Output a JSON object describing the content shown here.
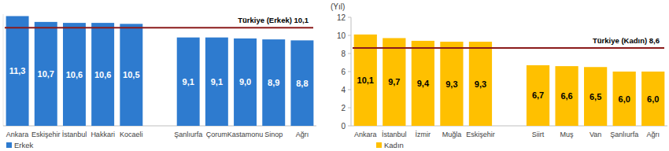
{
  "chart_data": [
    {
      "type": "bar",
      "categories": [
        "Ankara",
        "Eskişehir",
        "İstanbul",
        "Hakkari",
        "Kocaeli",
        null,
        "Şanlıurfa",
        "Çorum",
        "Kastamonu",
        "Sinop",
        "Ağrı"
      ],
      "series": [
        {
          "name": "Erkek",
          "color": "#2e7bcf",
          "values": [
            11.3,
            10.7,
            10.6,
            10.6,
            10.5,
            null,
            9.1,
            9.1,
            9.0,
            8.9,
            8.8
          ],
          "value_labels": [
            "11,3",
            "10,7",
            "10,6",
            "10,6",
            "10,5",
            null,
            "9,1",
            "9,1",
            "9,0",
            "8,9",
            "8,8"
          ]
        }
      ],
      "ylim": [
        0,
        11.5
      ],
      "tick_labels": "x",
      "data_labels": true,
      "legend": "bottom-left",
      "annotations": [
        {
          "text": "Türkiye (Erkek) 10,1",
          "value": 10.1,
          "color": "#8b1a1a"
        }
      ]
    },
    {
      "type": "bar",
      "y_label": "(Yıl)",
      "categories": [
        "Ankara",
        "İstanbul",
        "İzmir",
        "Muğla",
        "Eskişehir",
        null,
        "Siirt",
        "Muş",
        "Van",
        "Şanlıurfa",
        "Ağrı"
      ],
      "series": [
        {
          "name": "Kadın",
          "color": "#ffc000",
          "values": [
            10.1,
            9.7,
            9.4,
            9.3,
            9.3,
            null,
            6.7,
            6.6,
            6.5,
            6.0,
            6.0
          ],
          "value_labels": [
            "10,1",
            "9,7",
            "9,4",
            "9,3",
            "9,3",
            null,
            "6,7",
            "6,6",
            "6,5",
            "6,0",
            "6,0"
          ]
        }
      ],
      "ylim": [
        0,
        12
      ],
      "yticks": [
        0,
        2,
        4,
        6,
        8,
        10,
        12
      ],
      "tick_labels": true,
      "data_labels": true,
      "legend": "bottom-left",
      "annotations": [
        {
          "text": "Türkiye (Kadın) 8,6",
          "value": 8.6,
          "color": "#8b1a1a"
        }
      ]
    }
  ]
}
